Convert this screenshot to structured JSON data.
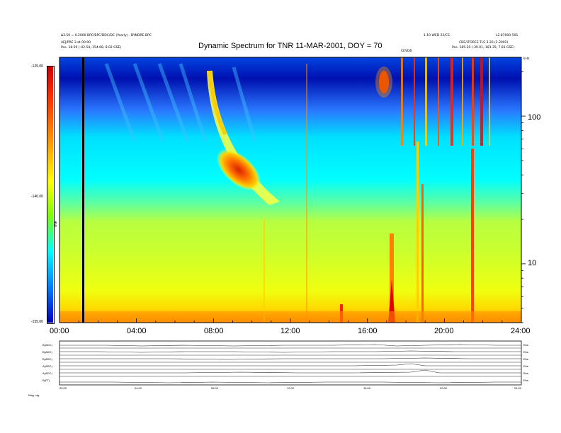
{
  "header": {
    "title": "Dynamic Spectrum for TNR 11-MAR-2001, DOY = 70",
    "left_line1": "Δ3.50 = 0.2000 BPC/BPC/DDC/DC (Yearly) · DYNDRE.BPC",
    "left_line2": "AEJ/PRE.3 at 00:00",
    "left_line3": "Pos.   18.59 (-42.54,-154.68, 8.02 GSE)",
    "right_line1": "1.10 WED 22/CS",
    "right_line2": "L2.87000-501",
    "right_line3": "CBE/LTORES TLS 3.20 (2.2002)",
    "right_line4": "Pos.   185.20 (-39.01,-181.35, 7.81 GSE)",
    "mid_label": "CEVD6",
    "corner_label": "kHz"
  },
  "colorbar": {
    "ticks": [
      "-125.00",
      "-140.00",
      "-155.00"
    ],
    "unit_label": "TNR",
    "colors": [
      "#d40000",
      "#ff3000",
      "#ff9000",
      "#ffff00",
      "#7fff00",
      "#00ffff",
      "#0080ff",
      "#0000c0"
    ]
  },
  "chart_data": {
    "type": "heatmap",
    "title": "Dynamic Spectrum for TNR 11-MAR-2001, DOY = 70",
    "x": {
      "ticks": [
        "00:00",
        "04:00",
        "08:00",
        "12:00",
        "16:00",
        "20:00",
        "24:00"
      ],
      "range_hours": [
        0,
        24
      ]
    },
    "y": {
      "scale": "log",
      "unit": "kHz",
      "tick_labels": [
        "100",
        "10"
      ],
      "tick_values": [
        100,
        10
      ],
      "range": [
        4,
        250
      ]
    },
    "z": {
      "scale_labels": [
        "-125.00",
        "-140.00",
        "-155.00"
      ],
      "range": [
        -155,
        -125
      ]
    },
    "features": [
      {
        "name": "type III burst drift",
        "start_hour": 7.8,
        "end_hour": 10.5,
        "freq_start_khz": 190,
        "freq_end_khz": 45
      },
      {
        "name": "intense emission",
        "hour": 17.3,
        "freq_khz": 190
      },
      {
        "name": "low frequency enhancement",
        "hour": 17.0,
        "freq_khz": 6
      },
      {
        "name": "low frequency enhancement",
        "hour": 21.3,
        "freq_khz": 8
      }
    ]
  },
  "subpanels": {
    "labels": [
      "B(ADC)",
      "B(ADC)",
      "B(ADC)",
      "A(ADC)",
      "A(ADC)",
      "B(FT)"
    ],
    "right_labels": [
      "Ebs",
      "Ebs",
      "Ebs",
      "Ebs",
      "Ebs",
      "Ebs"
    ],
    "x_ticks": [
      "00:00",
      "04:00",
      "08:00",
      "12:00",
      "16:00",
      "20:00",
      "24:00"
    ],
    "footer_label": "Mag.   cfg"
  }
}
